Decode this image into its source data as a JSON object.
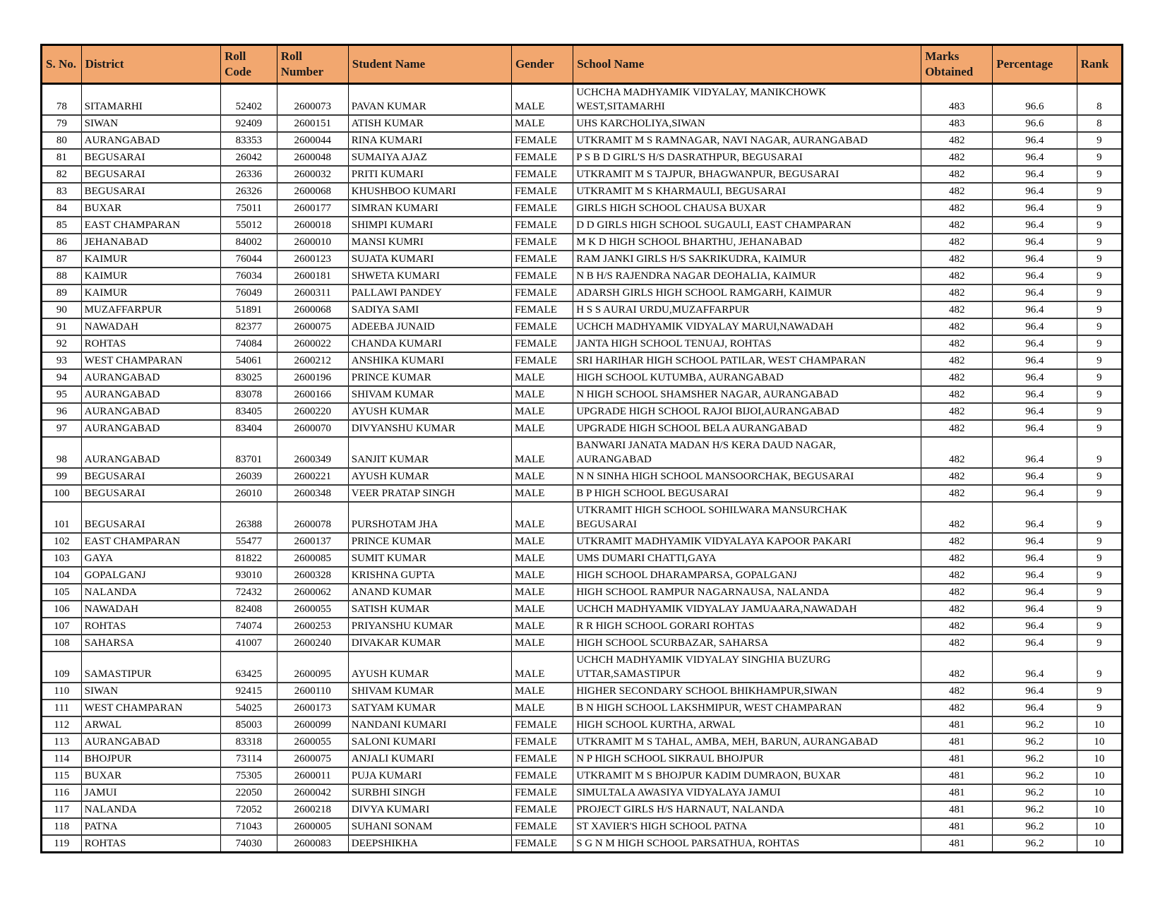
{
  "table": {
    "columns": [
      {
        "key": "sno",
        "label": "S. No."
      },
      {
        "key": "district",
        "label": "District"
      },
      {
        "key": "roll_code",
        "label": "Roll\nCode"
      },
      {
        "key": "roll_number",
        "label": "Roll\nNumber"
      },
      {
        "key": "student_name",
        "label": "Student Name"
      },
      {
        "key": "gender",
        "label": "Gender"
      },
      {
        "key": "school_name",
        "label": "School Name"
      },
      {
        "key": "marks",
        "label": "Marks\nObtained"
      },
      {
        "key": "percentage",
        "label": "Percentage"
      },
      {
        "key": "rank",
        "label": "Rank"
      }
    ],
    "rows": [
      [
        "78",
        "SITAMARHI",
        "52402",
        "2600073",
        "PAVAN KUMAR",
        "MALE",
        "UCHCHA MADHYAMIK VIDYALAY, MANIKCHOWK\nWEST,SITAMARHI",
        "483",
        "96.6",
        "8"
      ],
      [
        "79",
        "SIWAN",
        "92409",
        "2600151",
        "ATISH KUMAR",
        "MALE",
        "UHS KARCHOLIYA,SIWAN",
        "483",
        "96.6",
        "8"
      ],
      [
        "80",
        "AURANGABAD",
        "83353",
        "2600044",
        "RINA KUMARI",
        "FEMALE",
        "UTKRAMIT M S RAMNAGAR, NAVI NAGAR, AURANGABAD",
        "482",
        "96.4",
        "9"
      ],
      [
        "81",
        "BEGUSARAI",
        "26042",
        "2600048",
        "SUMAIYA AJAZ",
        "FEMALE",
        "P S B D GIRL'S H/S DASRATHPUR, BEGUSARAI",
        "482",
        "96.4",
        "9"
      ],
      [
        "82",
        "BEGUSARAI",
        "26336",
        "2600032",
        "PRITI KUMARI",
        "FEMALE",
        "UTKRAMIT M S TAJPUR, BHAGWANPUR, BEGUSARAI",
        "482",
        "96.4",
        "9"
      ],
      [
        "83",
        "BEGUSARAI",
        "26326",
        "2600068",
        "KHUSHBOO KUMARI",
        "FEMALE",
        "UTKRAMIT M S KHARMAULI, BEGUSARAI",
        "482",
        "96.4",
        "9"
      ],
      [
        "84",
        "BUXAR",
        "75011",
        "2600177",
        "SIMRAN KUMARI",
        "FEMALE",
        "GIRLS HIGH SCHOOL CHAUSA BUXAR",
        "482",
        "96.4",
        "9"
      ],
      [
        "85",
        "EAST CHAMPARAN",
        "55012",
        "2600018",
        "SHIMPI KUMARI",
        "FEMALE",
        "D D GIRLS HIGH SCHOOL SUGAULI, EAST CHAMPARAN",
        "482",
        "96.4",
        "9"
      ],
      [
        "86",
        "JEHANABAD",
        "84002",
        "2600010",
        "MANSI KUMRI",
        "FEMALE",
        "M K D HIGH SCHOOL BHARTHU, JEHANABAD",
        "482",
        "96.4",
        "9"
      ],
      [
        "87",
        "KAIMUR",
        "76044",
        "2600123",
        "SUJATA KUMARI",
        "FEMALE",
        "RAM JANKI GIRLS H/S SAKRIKUDRA, KAIMUR",
        "482",
        "96.4",
        "9"
      ],
      [
        "88",
        "KAIMUR",
        "76034",
        "2600181",
        "SHWETA KUMARI",
        "FEMALE",
        "N B H/S RAJENDRA NAGAR DEOHALIA, KAIMUR",
        "482",
        "96.4",
        "9"
      ],
      [
        "89",
        "KAIMUR",
        "76049",
        "2600311",
        "PALLAWI PANDEY",
        "FEMALE",
        "ADARSH GIRLS HIGH SCHOOL RAMGARH, KAIMUR",
        "482",
        "96.4",
        "9"
      ],
      [
        "90",
        "MUZAFFARPUR",
        "51891",
        "2600068",
        "SADIYA SAMI",
        "FEMALE",
        "H S S AURAI URDU,MUZAFFARPUR",
        "482",
        "96.4",
        "9"
      ],
      [
        "91",
        "NAWADAH",
        "82377",
        "2600075",
        "ADEEBA JUNAID",
        "FEMALE",
        "UCHCH MADHYAMIK VIDYALAY MARUI,NAWADAH",
        "482",
        "96.4",
        "9"
      ],
      [
        "92",
        "ROHTAS",
        "74084",
        "2600022",
        "CHANDA KUMARI",
        "FEMALE",
        "JANTA HIGH SCHOOL TENUAJ, ROHTAS",
        "482",
        "96.4",
        "9"
      ],
      [
        "93",
        "WEST CHAMPARAN",
        "54061",
        "2600212",
        "ANSHIKA KUMARI",
        "FEMALE",
        "SRI HARIHAR HIGH SCHOOL PATILAR, WEST CHAMPARAN",
        "482",
        "96.4",
        "9"
      ],
      [
        "94",
        "AURANGABAD",
        "83025",
        "2600196",
        "PRINCE KUMAR",
        "MALE",
        "HIGH SCHOOL KUTUMBA, AURANGABAD",
        "482",
        "96.4",
        "9"
      ],
      [
        "95",
        "AURANGABAD",
        "83078",
        "2600166",
        "SHIVAM KUMAR",
        "MALE",
        "N HIGH SCHOOL SHAMSHER NAGAR, AURANGABAD",
        "482",
        "96.4",
        "9"
      ],
      [
        "96",
        "AURANGABAD",
        "83405",
        "2600220",
        "AYUSH KUMAR",
        "MALE",
        "UPGRADE HIGH SCHOOL RAJOI BIJOI,AURANGABAD",
        "482",
        "96.4",
        "9"
      ],
      [
        "97",
        "AURANGABAD",
        "83404",
        "2600070",
        "DIVYANSHU KUMAR",
        "MALE",
        "UPGRADE HIGH SCHOOL BELA AURANGABAD",
        "482",
        "96.4",
        "9"
      ],
      [
        "98",
        "AURANGABAD",
        "83701",
        "2600349",
        "SANJIT KUMAR",
        "MALE",
        "BANWARI JANATA MADAN H/S KERA DAUD NAGAR,\nAURANGABAD",
        "482",
        "96.4",
        "9"
      ],
      [
        "99",
        "BEGUSARAI",
        "26039",
        "2600221",
        "AYUSH KUMAR",
        "MALE",
        "N N SINHA HIGH SCHOOL MANSOORCHAK, BEGUSARAI",
        "482",
        "96.4",
        "9"
      ],
      [
        "100",
        "BEGUSARAI",
        "26010",
        "2600348",
        "VEER PRATAP SINGH",
        "MALE",
        "B P HIGH SCHOOL BEGUSARAI",
        "482",
        "96.4",
        "9"
      ],
      [
        "101",
        "BEGUSARAI",
        "26388",
        "2600078",
        "PURSHOTAM JHA",
        "MALE",
        "UTKRAMIT HIGH SCHOOL SOHILWARA MANSURCHAK\nBEGUSARAI",
        "482",
        "96.4",
        "9"
      ],
      [
        "102",
        "EAST CHAMPARAN",
        "55477",
        "2600137",
        "PRINCE KUMAR",
        "MALE",
        "UTKRAMIT MADHYAMIK VIDYALAYA KAPOOR PAKARI",
        "482",
        "96.4",
        "9"
      ],
      [
        "103",
        "GAYA",
        "81822",
        "2600085",
        "SUMIT KUMAR",
        "MALE",
        "UMS DUMARI CHATTI,GAYA",
        "482",
        "96.4",
        "9"
      ],
      [
        "104",
        "GOPALGANJ",
        "93010",
        "2600328",
        "KRISHNA GUPTA",
        "MALE",
        "HIGH SCHOOL DHARAMPARSA, GOPALGANJ",
        "482",
        "96.4",
        "9"
      ],
      [
        "105",
        "NALANDA",
        "72432",
        "2600062",
        "ANAND KUMAR",
        "MALE",
        "HIGH SCHOOL RAMPUR NAGARNAUSA, NALANDA",
        "482",
        "96.4",
        "9"
      ],
      [
        "106",
        "NAWADAH",
        "82408",
        "2600055",
        "SATISH KUMAR",
        "MALE",
        "UCHCH MADHYAMIK VIDYALAY JAMUAARA,NAWADAH",
        "482",
        "96.4",
        "9"
      ],
      [
        "107",
        "ROHTAS",
        "74074",
        "2600253",
        "PRIYANSHU KUMAR",
        "MALE",
        "R R HIGH SCHOOL GORARI ROHTAS",
        "482",
        "96.4",
        "9"
      ],
      [
        "108",
        "SAHARSA",
        "41007",
        "2600240",
        "DIVAKAR KUMAR",
        "MALE",
        "HIGH SCHOOL SCURBAZAR, SAHARSA",
        "482",
        "96.4",
        "9"
      ],
      [
        "109",
        "SAMASTIPUR",
        "63425",
        "2600095",
        "AYUSH KUMAR",
        "MALE",
        "UCHCH MADHYAMIK VIDYALAY SINGHIA BUZURG\nUTTAR,SAMASTIPUR",
        "482",
        "96.4",
        "9"
      ],
      [
        "110",
        "SIWAN",
        "92415",
        "2600110",
        "SHIVAM KUMAR",
        "MALE",
        "HIGHER SECONDARY SCHOOL BHIKHAMPUR,SIWAN",
        "482",
        "96.4",
        "9"
      ],
      [
        "111",
        "WEST CHAMPARAN",
        "54025",
        "2600173",
        "SATYAM KUMAR",
        "MALE",
        "B N HIGH SCHOOL LAKSHMIPUR, WEST CHAMPARAN",
        "482",
        "96.4",
        "9"
      ],
      [
        "112",
        "ARWAL",
        "85003",
        "2600099",
        "NANDANI KUMARI",
        "FEMALE",
        "HIGH SCHOOL KURTHA, ARWAL",
        "481",
        "96.2",
        "10"
      ],
      [
        "113",
        "AURANGABAD",
        "83318",
        "2600055",
        "SALONI KUMARI",
        "FEMALE",
        "UTKRAMIT M S TAHAL, AMBA, MEH, BARUN, AURANGABAD",
        "481",
        "96.2",
        "10"
      ],
      [
        "114",
        "BHOJPUR",
        "73114",
        "2600075",
        "ANJALI KUMARI",
        "FEMALE",
        "N P HIGH SCHOOL SIKRAUL BHOJPUR",
        "481",
        "96.2",
        "10"
      ],
      [
        "115",
        "BUXAR",
        "75305",
        "2600011",
        "PUJA KUMARI",
        "FEMALE",
        "UTKRAMIT M S BHOJPUR KADIM DUMRAON, BUXAR",
        "481",
        "96.2",
        "10"
      ],
      [
        "116",
        "JAMUI",
        "22050",
        "2600042",
        "SURBHI SINGH",
        "FEMALE",
        "SIMULTALA AWASIYA VIDYALAYA JAMUI",
        "481",
        "96.2",
        "10"
      ],
      [
        "117",
        "NALANDA",
        "72052",
        "2600218",
        "DIVYA KUMARI",
        "FEMALE",
        "PROJECT GIRLS H/S HARNAUT, NALANDA",
        "481",
        "96.2",
        "10"
      ],
      [
        "118",
        "PATNA",
        "71043",
        "2600005",
        "SUHANI SONAM",
        "FEMALE",
        "ST XAVIER'S HIGH SCHOOL PATNA",
        "481",
        "96.2",
        "10"
      ],
      [
        "119",
        "ROHTAS",
        "74030",
        "2600083",
        "DEEPSHIKHA",
        "FEMALE",
        "S G N M HIGH SCHOOL PARSATHUA, ROHTAS",
        "481",
        "96.2",
        "10"
      ]
    ]
  },
  "colors": {
    "header_bg": "#F2A76F",
    "border": "#000000",
    "page_bg": "#FFFFFF"
  }
}
